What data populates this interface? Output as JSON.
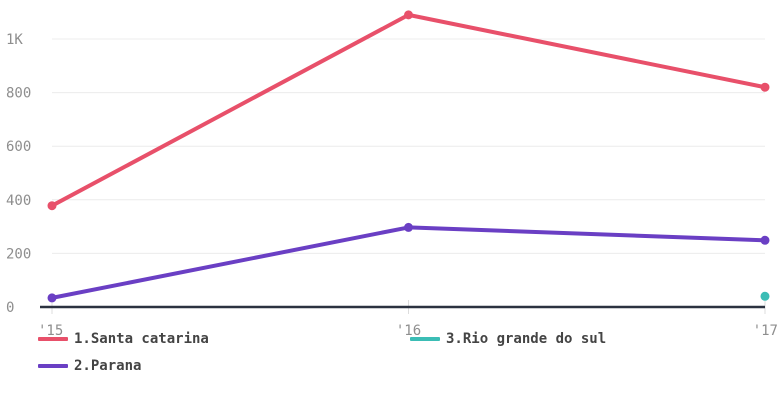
{
  "chart_data": {
    "type": "line",
    "x": [
      "'15",
      "'16",
      "'17"
    ],
    "y_ticks": [
      0,
      200,
      400,
      600,
      800,
      1000
    ],
    "y_tick_labels": [
      "0",
      "200",
      "400",
      "600",
      "800",
      "1K"
    ],
    "ylim": [
      0,
      1100
    ],
    "grid": true,
    "legend_position": "bottom",
    "series": [
      {
        "name": "1.Santa catarina",
        "color": "#e8506a",
        "values": [
          378,
          1090,
          820
        ]
      },
      {
        "name": "2.Parana",
        "color": "#6a3fc4",
        "values": [
          34,
          297,
          249
        ]
      },
      {
        "name": "3.Rio grande do sul",
        "color": "#3bbdb5",
        "values": [
          null,
          null,
          40
        ]
      }
    ]
  }
}
